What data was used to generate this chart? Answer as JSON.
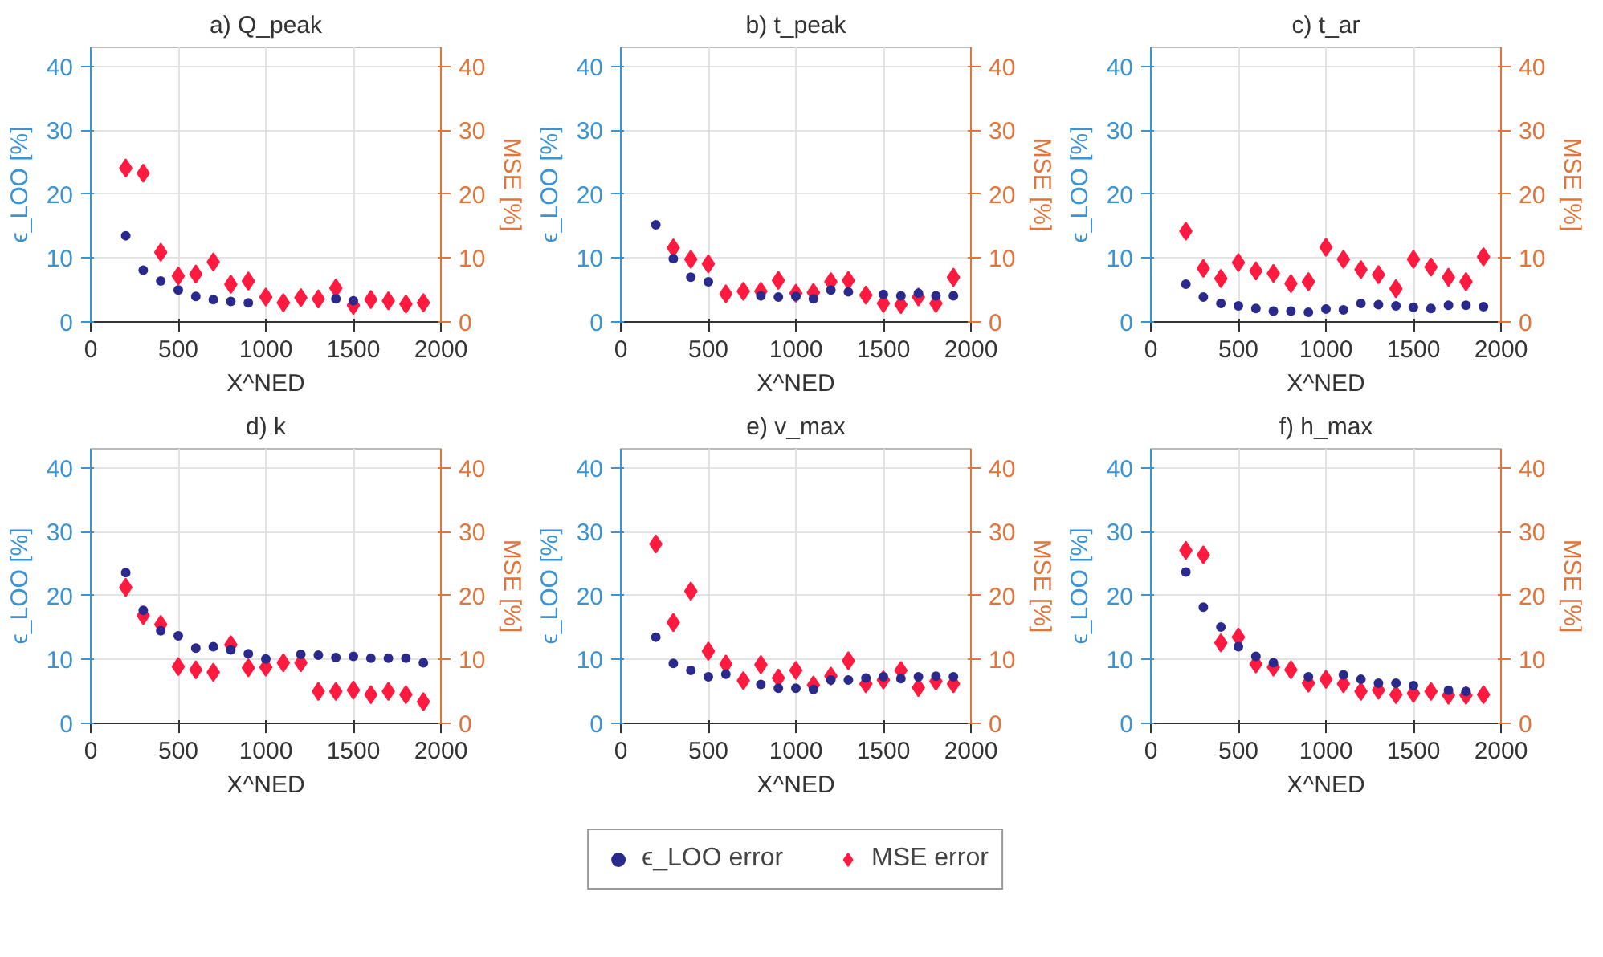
{
  "chart_data": [
    {
      "type": "scatter",
      "title": "a) Q_peak",
      "xlabel": "X^NED",
      "ylabel": "ϵ_LOO [%]",
      "y2label": "MSE [%]",
      "x": [
        200,
        300,
        400,
        500,
        600,
        700,
        800,
        900,
        1000,
        1100,
        1200,
        1300,
        1400,
        1500,
        1600,
        1700,
        1800,
        1900
      ],
      "xlim": [
        0,
        2000
      ],
      "xticks": [
        0,
        500,
        1000,
        1500,
        2000
      ],
      "ylim": [
        0,
        43
      ],
      "yticks": [
        0,
        10,
        20,
        30,
        40
      ],
      "y2lim": [
        0,
        43
      ],
      "y2ticks": [
        0,
        10,
        20,
        30,
        40
      ],
      "grid": true,
      "legend": "bottom",
      "series": [
        {
          "name": "ϵ_LOO error",
          "color": "#2a2a8c",
          "marker": "circle",
          "values": [
            13.5,
            8.1,
            6.4,
            5.0,
            4.0,
            3.5,
            3.2,
            3.0,
            null,
            null,
            null,
            null,
            3.6,
            3.3,
            null,
            null,
            null,
            null
          ]
        },
        {
          "name": "MSE error",
          "color": "#ff1a40",
          "marker": "diamond",
          "axis": "y2",
          "values": [
            24.1,
            23.3,
            10.9,
            7.2,
            7.5,
            9.4,
            5.9,
            6.4,
            3.9,
            3.0,
            3.8,
            3.6,
            5.3,
            2.6,
            3.5,
            3.3,
            2.8,
            3.0
          ]
        }
      ]
    },
    {
      "type": "scatter",
      "title": "b) t_peak",
      "xlabel": "X^NED",
      "ylabel": "ϵ_LOO [%]",
      "y2label": "MSE [%]",
      "x": [
        200,
        300,
        400,
        500,
        600,
        700,
        800,
        900,
        1000,
        1100,
        1200,
        1300,
        1400,
        1500,
        1600,
        1700,
        1800,
        1900
      ],
      "xlim": [
        0,
        2000
      ],
      "xticks": [
        0,
        500,
        1000,
        1500,
        2000
      ],
      "ylim": [
        0,
        43
      ],
      "yticks": [
        0,
        10,
        20,
        30,
        40
      ],
      "y2lim": [
        0,
        43
      ],
      "y2ticks": [
        0,
        10,
        20,
        30,
        40
      ],
      "grid": true,
      "series": [
        {
          "color": "#2a2a8c",
          "marker": "circle",
          "values": [
            15.2,
            9.9,
            7.0,
            6.3,
            null,
            null,
            4.1,
            3.9,
            4.0,
            3.6,
            5.0,
            4.7,
            null,
            4.3,
            4.1,
            4.5,
            4.1,
            4.1
          ]
        },
        {
          "color": "#ff1a40",
          "marker": "diamond",
          "axis": "y2",
          "values": [
            null,
            11.6,
            9.8,
            9.1,
            4.4,
            4.8,
            4.8,
            6.5,
            4.5,
            4.6,
            6.3,
            6.5,
            4.2,
            2.9,
            2.7,
            3.9,
            2.9,
            7.0
          ]
        }
      ]
    },
    {
      "type": "scatter",
      "title": "c) t_ar",
      "xlabel": "X^NED",
      "ylabel": "ϵ_LOO [%]",
      "y2label": "MSE [%]",
      "x": [
        200,
        300,
        400,
        500,
        600,
        700,
        800,
        900,
        1000,
        1100,
        1200,
        1300,
        1400,
        1500,
        1600,
        1700,
        1800,
        1900
      ],
      "xlim": [
        0,
        2000
      ],
      "xticks": [
        0,
        500,
        1000,
        1500,
        2000
      ],
      "ylim": [
        0,
        43
      ],
      "yticks": [
        0,
        10,
        20,
        30,
        40
      ],
      "y2lim": [
        0,
        43
      ],
      "y2ticks": [
        0,
        10,
        20,
        30,
        40
      ],
      "grid": true,
      "series": [
        {
          "color": "#2a2a8c",
          "marker": "circle",
          "values": [
            5.9,
            3.9,
            2.9,
            2.5,
            2.1,
            1.7,
            1.7,
            1.5,
            2.0,
            1.9,
            2.9,
            2.7,
            2.5,
            2.3,
            2.1,
            2.6,
            2.6,
            2.4
          ]
        },
        {
          "color": "#ff1a40",
          "marker": "diamond",
          "axis": "y2",
          "values": [
            14.2,
            8.4,
            6.8,
            9.3,
            8.0,
            7.6,
            6.0,
            6.3,
            11.7,
            9.8,
            8.2,
            7.4,
            5.2,
            9.8,
            8.6,
            7.0,
            6.3,
            10.2
          ]
        }
      ]
    },
    {
      "type": "scatter",
      "title": "d) k",
      "xlabel": "X^NED",
      "ylabel": "ϵ_LOO [%]",
      "y2label": "MSE [%]",
      "x": [
        200,
        300,
        400,
        500,
        600,
        700,
        800,
        900,
        1000,
        1100,
        1200,
        1300,
        1400,
        1500,
        1600,
        1700,
        1800,
        1900
      ],
      "xlim": [
        0,
        2000
      ],
      "xticks": [
        0,
        500,
        1000,
        1500,
        2000
      ],
      "ylim": [
        0,
        43
      ],
      "yticks": [
        0,
        10,
        20,
        30,
        40
      ],
      "y2lim": [
        0,
        43
      ],
      "y2ticks": [
        0,
        10,
        20,
        30,
        40
      ],
      "grid": true,
      "series": [
        {
          "color": "#2a2a8c",
          "marker": "circle",
          "values": [
            23.6,
            17.7,
            14.5,
            13.7,
            11.8,
            12.0,
            11.5,
            10.9,
            10.1,
            null,
            10.8,
            10.7,
            10.3,
            10.5,
            10.2,
            10.2,
            10.2,
            9.5
          ]
        },
        {
          "color": "#ff1a40",
          "marker": "diamond",
          "axis": "y2",
          "values": [
            21.3,
            16.9,
            15.5,
            8.9,
            8.4,
            8.0,
            12.3,
            8.7,
            8.8,
            9.5,
            9.5,
            5.0,
            5.0,
            5.2,
            4.5,
            5.0,
            4.5,
            3.4
          ]
        }
      ]
    },
    {
      "type": "scatter",
      "title": "e) v_max",
      "xlabel": "X^NED",
      "ylabel": "ϵ_LOO [%]",
      "y2label": "MSE [%]",
      "x": [
        200,
        300,
        400,
        500,
        600,
        700,
        800,
        900,
        1000,
        1100,
        1200,
        1300,
        1400,
        1500,
        1600,
        1700,
        1800,
        1900
      ],
      "xlim": [
        0,
        2000
      ],
      "xticks": [
        0,
        500,
        1000,
        1500,
        2000
      ],
      "ylim": [
        0,
        43
      ],
      "yticks": [
        0,
        10,
        20,
        30,
        40
      ],
      "y2lim": [
        0,
        43
      ],
      "y2ticks": [
        0,
        10,
        20,
        30,
        40
      ],
      "grid": true,
      "series": [
        {
          "color": "#2a2a8c",
          "marker": "circle",
          "values": [
            13.5,
            9.4,
            8.3,
            7.3,
            7.7,
            null,
            6.1,
            5.5,
            5.5,
            5.3,
            6.8,
            6.8,
            7.1,
            7.3,
            7.0,
            7.3,
            7.4,
            7.3
          ]
        },
        {
          "color": "#ff1a40",
          "marker": "diamond",
          "axis": "y2",
          "values": [
            28.1,
            15.8,
            20.7,
            11.3,
            9.3,
            6.7,
            9.2,
            7.1,
            8.3,
            6.0,
            7.4,
            9.8,
            6.2,
            6.8,
            8.3,
            5.6,
            6.6,
            6.2
          ]
        }
      ]
    },
    {
      "type": "scatter",
      "title": "f) h_max",
      "xlabel": "X^NED",
      "ylabel": "ϵ_LOO [%]",
      "y2label": "MSE [%]",
      "x": [
        200,
        300,
        400,
        500,
        600,
        700,
        800,
        900,
        1000,
        1100,
        1200,
        1300,
        1400,
        1500,
        1600,
        1700,
        1800,
        1900
      ],
      "xlim": [
        0,
        2000
      ],
      "xticks": [
        0,
        500,
        1000,
        1500,
        2000
      ],
      "ylim": [
        0,
        43
      ],
      "yticks": [
        0,
        10,
        20,
        30,
        40
      ],
      "y2lim": [
        0,
        43
      ],
      "y2ticks": [
        0,
        10,
        20,
        30,
        40
      ],
      "grid": true,
      "series": [
        {
          "color": "#2a2a8c",
          "marker": "circle",
          "values": [
            23.7,
            18.2,
            15.1,
            12.0,
            10.5,
            9.5,
            null,
            7.3,
            null,
            7.6,
            6.9,
            6.3,
            6.3,
            5.9,
            null,
            5.2,
            5.0,
            null
          ]
        },
        {
          "color": "#ff1a40",
          "marker": "diamond",
          "axis": "y2",
          "values": [
            27.1,
            26.4,
            12.6,
            13.5,
            9.3,
            8.8,
            8.4,
            6.3,
            6.9,
            6.2,
            5.0,
            5.2,
            4.5,
            4.7,
            5.0,
            4.4,
            4.4,
            4.5
          ]
        }
      ]
    }
  ]
}
